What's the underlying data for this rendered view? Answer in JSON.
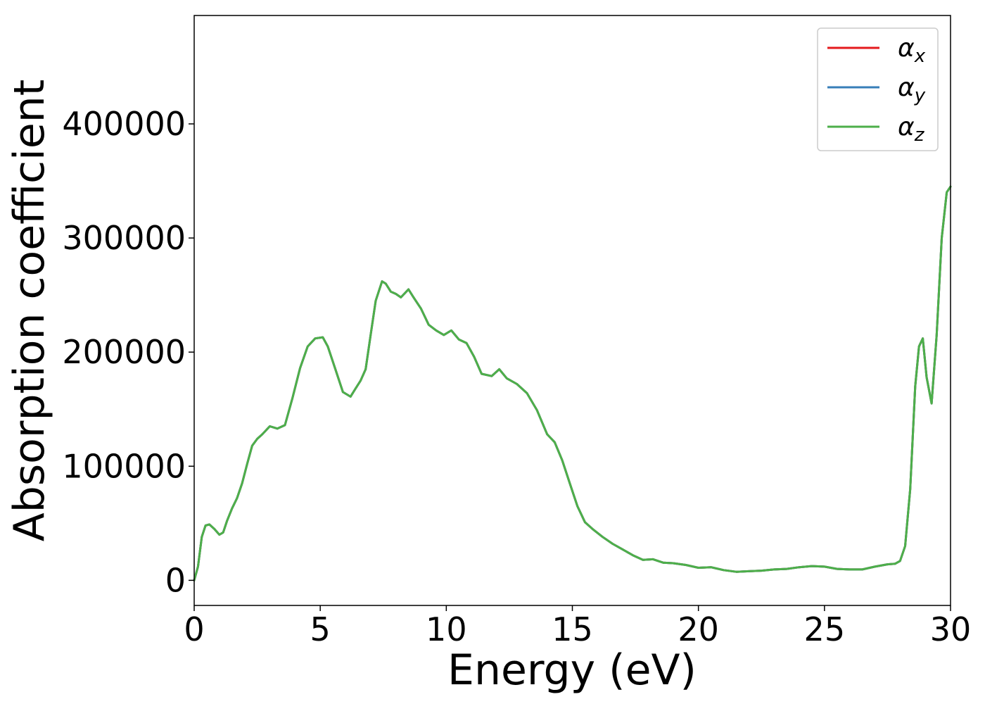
{
  "chart_data": {
    "type": "line",
    "xlabel": "Energy (eV)",
    "ylabel": "Absorption coefficient",
    "xlim": [
      0,
      30
    ],
    "ylim": [
      -22000,
      495000
    ],
    "xticks": [
      0,
      5,
      10,
      15,
      20,
      25,
      30
    ],
    "yticks": [
      0,
      100000,
      200000,
      300000,
      400000
    ],
    "grid": false,
    "legend_position": "top-right",
    "series": [
      {
        "name": "α",
        "subscript": "x",
        "color": "#e41a1c"
      },
      {
        "name": "α",
        "subscript": "y",
        "color": "#377eb8"
      },
      {
        "name": "α",
        "subscript": "z",
        "color": "#4daf4a"
      }
    ],
    "x": [
      0,
      0.15,
      0.3,
      0.45,
      0.6,
      0.8,
      1.0,
      1.15,
      1.3,
      1.5,
      1.7,
      1.9,
      2.1,
      2.3,
      2.5,
      2.7,
      3.0,
      3.3,
      3.6,
      3.9,
      4.2,
      4.5,
      4.8,
      5.1,
      5.3,
      5.6,
      5.9,
      6.2,
      6.4,
      6.6,
      6.8,
      7.0,
      7.2,
      7.45,
      7.6,
      7.8,
      8.0,
      8.2,
      8.5,
      8.7,
      9.0,
      9.3,
      9.6,
      9.9,
      10.2,
      10.5,
      10.8,
      11.1,
      11.4,
      11.8,
      12.1,
      12.4,
      12.8,
      13.2,
      13.6,
      14.0,
      14.3,
      14.6,
      14.9,
      15.2,
      15.5,
      15.8,
      16.2,
      16.6,
      17.0,
      17.4,
      17.8,
      18.2,
      18.6,
      19.0,
      19.5,
      20.0,
      20.5,
      21.0,
      21.5,
      22.0,
      22.5,
      23.0,
      23.5,
      24.0,
      24.5,
      25.0,
      25.5,
      26.0,
      26.5,
      27.0,
      27.5,
      27.8,
      28.0,
      28.2,
      28.4,
      28.6,
      28.75,
      28.9,
      29.05,
      29.25,
      29.45,
      29.65,
      29.85,
      30.0
    ],
    "values": [
      [
        0,
        12000,
        38000,
        48000,
        49000,
        45000,
        40000,
        42000,
        52000,
        63000,
        72000,
        85000,
        102000,
        118000,
        124000,
        128000,
        135000,
        133000,
        136000,
        160000,
        186000,
        205000,
        212000,
        213000,
        205000,
        185000,
        165000,
        161000,
        168000,
        175000,
        185000,
        215000,
        245000,
        262000,
        260000,
        253000,
        251000,
        248000,
        255000,
        248000,
        238000,
        224000,
        219000,
        215000,
        219000,
        211000,
        208000,
        196000,
        181000,
        179000,
        185000,
        177000,
        172000,
        164000,
        149000,
        128000,
        121000,
        105000,
        85000,
        65000,
        51000,
        45000,
        38000,
        32000,
        27000,
        22000,
        18000,
        18500,
        15500,
        15000,
        13500,
        11000,
        11500,
        9000,
        7500,
        8000,
        8500,
        9500,
        10000,
        11500,
        12500,
        12000,
        10000,
        9500,
        9500,
        12000,
        14000,
        14500,
        17000,
        30000,
        80000,
        170000,
        205000,
        212000,
        178000,
        155000,
        215000,
        300000,
        340000,
        345000
      ],
      [
        0,
        12000,
        38000,
        48000,
        49000,
        45000,
        40000,
        42000,
        52000,
        63000,
        72000,
        85000,
        102000,
        118000,
        124000,
        128000,
        135000,
        133000,
        136000,
        160000,
        186000,
        205000,
        212000,
        213000,
        205000,
        185000,
        165000,
        161000,
        168000,
        175000,
        185000,
        215000,
        245000,
        262000,
        260000,
        253000,
        251000,
        248000,
        255000,
        248000,
        238000,
        224000,
        219000,
        215000,
        219000,
        211000,
        208000,
        196000,
        181000,
        179000,
        185000,
        177000,
        172000,
        164000,
        149000,
        128000,
        121000,
        105000,
        85000,
        65000,
        51000,
        45000,
        38000,
        32000,
        27000,
        22000,
        18000,
        18500,
        15500,
        15000,
        13500,
        11000,
        11500,
        9000,
        7500,
        8000,
        8500,
        9500,
        10000,
        11500,
        12500,
        12000,
        10000,
        9500,
        9500,
        12000,
        14000,
        14500,
        17000,
        30000,
        80000,
        170000,
        205000,
        212000,
        178000,
        155000,
        215000,
        300000,
        340000,
        345000
      ],
      [
        0,
        12000,
        38000,
        48000,
        49000,
        45000,
        40000,
        42000,
        52000,
        63000,
        72000,
        85000,
        102000,
        118000,
        124000,
        128000,
        135000,
        133000,
        136000,
        160000,
        186000,
        205000,
        212000,
        213000,
        205000,
        185000,
        165000,
        161000,
        168000,
        175000,
        185000,
        215000,
        245000,
        262000,
        260000,
        253000,
        251000,
        248000,
        255000,
        248000,
        238000,
        224000,
        219000,
        215000,
        219000,
        211000,
        208000,
        196000,
        181000,
        179000,
        185000,
        177000,
        172000,
        164000,
        149000,
        128000,
        121000,
        105000,
        85000,
        65000,
        51000,
        45000,
        38000,
        32000,
        27000,
        22000,
        18000,
        18500,
        15500,
        15000,
        13500,
        11000,
        11500,
        9000,
        7500,
        8000,
        8500,
        9500,
        10000,
        11500,
        12500,
        12000,
        10000,
        9500,
        9500,
        12000,
        14000,
        14500,
        17000,
        30000,
        80000,
        170000,
        205000,
        212000,
        178000,
        155000,
        215000,
        300000,
        340000,
        345000
      ]
    ]
  }
}
